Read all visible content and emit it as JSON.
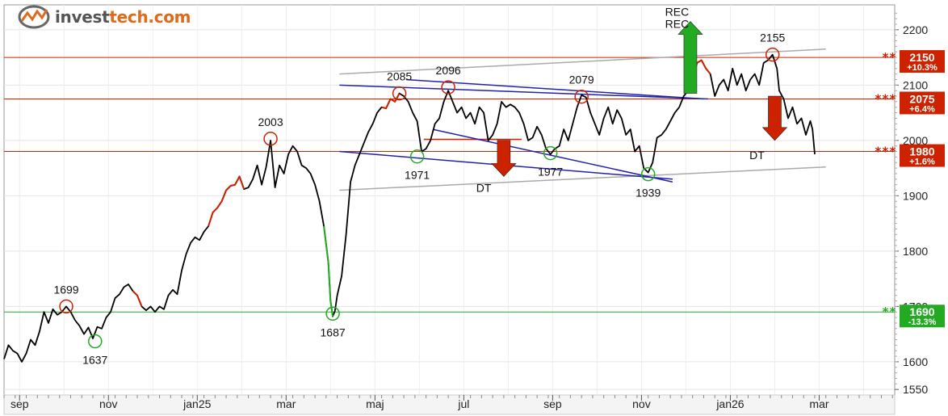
{
  "brand": {
    "name_part1": "invest",
    "name_part2": "tech.com",
    "icon": "investtech-logo-icon"
  },
  "chart_data": {
    "type": "line",
    "ylim": [
      1540,
      2245
    ],
    "yticks": [
      1550,
      1600,
      1700,
      1800,
      1900,
      2000,
      2100,
      2200
    ],
    "x_months": [
      {
        "label": "sep",
        "m": 1
      },
      {
        "label": "nov",
        "m": 3
      },
      {
        "label": "jan25",
        "m": 5
      },
      {
        "label": "mar",
        "m": 7
      },
      {
        "label": "maj",
        "m": 9
      },
      {
        "label": "jul",
        "m": 11
      },
      {
        "label": "sep",
        "m": 13
      },
      {
        "label": "nov",
        "m": 15
      },
      {
        "label": "jan26",
        "m": 17
      },
      {
        "label": "mar",
        "m": 19
      }
    ],
    "xlim": [
      0.65,
      20.7
    ],
    "series": [
      {
        "points": [
          [
            0.65,
            1605
          ],
          [
            0.75,
            1630
          ],
          [
            0.85,
            1620
          ],
          [
            0.95,
            1615
          ],
          [
            1.05,
            1600
          ],
          [
            1.15,
            1615
          ],
          [
            1.25,
            1640
          ],
          [
            1.35,
            1630
          ],
          [
            1.45,
            1655
          ],
          [
            1.55,
            1690
          ],
          [
            1.65,
            1670
          ],
          [
            1.75,
            1695
          ],
          [
            1.85,
            1685
          ],
          [
            1.95,
            1690
          ],
          [
            2.05,
            1700
          ],
          [
            2.15,
            1690
          ],
          [
            2.25,
            1675
          ],
          [
            2.35,
            1665
          ],
          [
            2.45,
            1650
          ],
          [
            2.55,
            1662
          ],
          [
            2.65,
            1642
          ],
          [
            2.75,
            1663
          ],
          [
            2.85,
            1660
          ],
          [
            2.95,
            1680
          ],
          [
            3.05,
            1690
          ],
          [
            3.15,
            1715
          ],
          [
            3.25,
            1722
          ],
          [
            3.35,
            1735
          ],
          [
            3.45,
            1740
          ],
          [
            3.55,
            1728
          ],
          [
            3.65,
            1720
          ],
          [
            3.75,
            1700
          ],
          [
            3.85,
            1693
          ],
          [
            3.95,
            1700
          ],
          [
            4.05,
            1690
          ],
          [
            4.15,
            1700
          ],
          [
            4.25,
            1695
          ],
          [
            4.35,
            1720
          ],
          [
            4.45,
            1730
          ],
          [
            4.55,
            1722
          ],
          [
            4.65,
            1765
          ],
          [
            4.75,
            1795
          ],
          [
            4.85,
            1815
          ],
          [
            4.95,
            1825
          ],
          [
            5.05,
            1820
          ],
          [
            5.15,
            1835
          ],
          [
            5.25,
            1845
          ],
          [
            5.35,
            1870
          ],
          [
            5.45,
            1878
          ],
          [
            5.55,
            1890
          ],
          [
            5.65,
            1910
          ],
          [
            5.75,
            1918
          ],
          [
            5.85,
            1920
          ],
          [
            5.95,
            1935
          ],
          [
            6.05,
            1912
          ],
          [
            6.15,
            1915
          ],
          [
            6.25,
            1930
          ],
          [
            6.35,
            1955
          ],
          [
            6.45,
            1920
          ],
          [
            6.55,
            1952
          ],
          [
            6.65,
            2000
          ],
          [
            6.75,
            1915
          ],
          [
            6.85,
            1955
          ],
          [
            6.95,
            1940
          ],
          [
            7.05,
            1975
          ],
          [
            7.15,
            1990
          ],
          [
            7.25,
            1980
          ],
          [
            7.35,
            1955
          ],
          [
            7.45,
            1950
          ],
          [
            7.55,
            1940
          ],
          [
            7.65,
            1920
          ],
          [
            7.75,
            1890
          ],
          [
            7.85,
            1845
          ],
          [
            7.95,
            1780
          ],
          [
            8.0,
            1710
          ],
          [
            8.05,
            1682
          ],
          [
            8.1,
            1692
          ],
          [
            8.15,
            1720
          ],
          [
            8.25,
            1755
          ],
          [
            8.35,
            1830
          ],
          [
            8.45,
            1925
          ],
          [
            8.55,
            1955
          ],
          [
            8.65,
            1975
          ],
          [
            8.75,
            1995
          ],
          [
            8.85,
            2015
          ],
          [
            8.95,
            2030
          ],
          [
            9.05,
            2050
          ],
          [
            9.15,
            2060
          ],
          [
            9.25,
            2058
          ],
          [
            9.35,
            2075
          ],
          [
            9.45,
            2070
          ],
          [
            9.55,
            2085
          ],
          [
            9.65,
            2080
          ],
          [
            9.75,
            2070
          ],
          [
            9.85,
            2050
          ],
          [
            9.95,
            2035
          ],
          [
            10.05,
            1980
          ],
          [
            10.15,
            1985
          ],
          [
            10.25,
            2000
          ],
          [
            10.35,
            2030
          ],
          [
            10.45,
            2040
          ],
          [
            10.55,
            2070
          ],
          [
            10.65,
            2090
          ],
          [
            10.75,
            2070
          ],
          [
            10.85,
            2050
          ],
          [
            10.95,
            2060
          ],
          [
            11.05,
            2040
          ],
          [
            11.15,
            2050
          ],
          [
            11.25,
            2030
          ],
          [
            11.35,
            2060
          ],
          [
            11.45,
            2050
          ],
          [
            11.55,
            2000
          ],
          [
            11.65,
            2010
          ],
          [
            11.75,
            2030
          ],
          [
            11.85,
            2070
          ],
          [
            11.95,
            2060
          ],
          [
            12.05,
            2065
          ],
          [
            12.15,
            2060
          ],
          [
            12.25,
            2050
          ],
          [
            12.35,
            2030
          ],
          [
            12.45,
            2000
          ],
          [
            12.55,
            2005
          ],
          [
            12.65,
            2025
          ],
          [
            12.75,
            2010
          ],
          [
            12.85,
            1985
          ],
          [
            12.95,
            1975
          ],
          [
            13.05,
            1985
          ],
          [
            13.15,
            1990
          ],
          [
            13.25,
            2020
          ],
          [
            13.35,
            2000
          ],
          [
            13.45,
            2030
          ],
          [
            13.55,
            2060
          ],
          [
            13.65,
            2082
          ],
          [
            13.75,
            2078
          ],
          [
            13.85,
            2050
          ],
          [
            13.95,
            2030
          ],
          [
            14.05,
            2010
          ],
          [
            14.15,
            2040
          ],
          [
            14.25,
            2060
          ],
          [
            14.35,
            2030
          ],
          [
            14.45,
            2055
          ],
          [
            14.55,
            2040
          ],
          [
            14.65,
            2010
          ],
          [
            14.75,
            2020
          ],
          [
            14.85,
            1980
          ],
          [
            14.95,
            1990
          ],
          [
            15.05,
            1950
          ],
          [
            15.15,
            1942
          ],
          [
            15.25,
            1960
          ],
          [
            15.35,
            2005
          ],
          [
            15.45,
            2010
          ],
          [
            15.55,
            2020
          ],
          [
            15.65,
            2035
          ],
          [
            15.75,
            2050
          ],
          [
            15.85,
            2060
          ],
          [
            15.95,
            2080
          ],
          [
            16.05,
            2090
          ],
          [
            16.15,
            2110
          ],
          [
            16.25,
            2140
          ],
          [
            16.35,
            2145
          ],
          [
            16.45,
            2130
          ],
          [
            16.55,
            2120
          ],
          [
            16.65,
            2080
          ],
          [
            16.75,
            2100
          ],
          [
            16.85,
            2110
          ],
          [
            16.95,
            2090
          ],
          [
            17.05,
            2130
          ],
          [
            17.15,
            2100
          ],
          [
            17.25,
            2120
          ],
          [
            17.35,
            2090
          ],
          [
            17.45,
            2110
          ],
          [
            17.55,
            2120
          ],
          [
            17.65,
            2100
          ],
          [
            17.75,
            2140
          ],
          [
            17.85,
            2145
          ],
          [
            17.95,
            2155
          ],
          [
            18.05,
            2130
          ],
          [
            18.1,
            2090
          ],
          [
            18.2,
            2075
          ],
          [
            18.3,
            2040
          ],
          [
            18.4,
            2060
          ],
          [
            18.5,
            2030
          ],
          [
            18.6,
            2040
          ],
          [
            18.7,
            2010
          ],
          [
            18.8,
            2035
          ],
          [
            18.85,
            2020
          ],
          [
            18.9,
            1975
          ]
        ]
      }
    ],
    "colored_segments": [
      {
        "from": 3.5,
        "to": 3.8,
        "color": "#cc2200"
      },
      {
        "from": 5.2,
        "to": 6.1,
        "color": "#cc2200"
      },
      {
        "from": 7.85,
        "to": 8.07,
        "color": "#22aa22"
      },
      {
        "from": 9.1,
        "to": 9.6,
        "color": "#cc2200"
      },
      {
        "from": 16.0,
        "to": 16.55,
        "color": "#cc2200"
      }
    ],
    "levels": [
      {
        "stars": "**",
        "value": "2150",
        "pct": "+10.3%",
        "y": 2150,
        "color": "#cc2200"
      },
      {
        "stars": "***",
        "value": "2075",
        "pct": "+6.4%",
        "y": 2075,
        "color": "#cc2200"
      },
      {
        "stars": "***",
        "value": "1980",
        "pct": "+1.6%",
        "y": 1980,
        "color": "#cc2200"
      },
      {
        "stars": "**",
        "value": "1690",
        "pct": "-13.3%",
        "y": 1690,
        "color": "#22aa22"
      }
    ],
    "trendlines": [
      {
        "color": "#aaaaaa",
        "p1": [
          8.2,
          2120
        ],
        "p2": [
          19.15,
          2165
        ]
      },
      {
        "color": "#aaaaaa",
        "p1": [
          8.2,
          1910
        ],
        "p2": [
          19.15,
          1952
        ]
      },
      {
        "color": "#2222aa",
        "p1": [
          8.2,
          2100
        ],
        "p2": [
          16.5,
          2075
        ]
      },
      {
        "color": "#2222aa",
        "p1": [
          8.2,
          1980
        ],
        "p2": [
          15.7,
          1930
        ]
      },
      {
        "color": "#2222aa",
        "p1": [
          9.7,
          2110
        ],
        "p2": [
          16.4,
          2075
        ]
      },
      {
        "color": "#2222aa",
        "p1": [
          10.3,
          2020
        ],
        "p2": [
          15.7,
          1925
        ]
      }
    ],
    "extra_lines": [
      {
        "color": "#cc2200",
        "p1": [
          10.1,
          2002
        ],
        "p2": [
          12.3,
          2002
        ]
      }
    ],
    "peaks": [
      {
        "label": "1699",
        "x": 2.05,
        "y": 1700,
        "kind": "high"
      },
      {
        "label": "2003",
        "x": 6.65,
        "y": 2003,
        "kind": "high"
      },
      {
        "label": "2085",
        "x": 9.55,
        "y": 2085,
        "kind": "high"
      },
      {
        "label": "2096",
        "x": 10.65,
        "y": 2096,
        "kind": "high"
      },
      {
        "label": "2079",
        "x": 13.65,
        "y": 2079,
        "kind": "high"
      },
      {
        "label": "2155",
        "x": 17.95,
        "y": 2155,
        "kind": "high"
      },
      {
        "label": "1637",
        "x": 2.7,
        "y": 1637,
        "kind": "low"
      },
      {
        "label": "1687",
        "x": 8.05,
        "y": 1687,
        "kind": "low"
      },
      {
        "label": "1971",
        "x": 9.95,
        "y": 1971,
        "kind": "low"
      },
      {
        "label": "1977",
        "x": 12.95,
        "y": 1977,
        "kind": "low"
      },
      {
        "label": "1939",
        "x": 15.15,
        "y": 1939,
        "kind": "low"
      }
    ],
    "signals": [
      {
        "label": "DT",
        "dir": "down",
        "x": 11.9,
        "y_top": 2000,
        "y_bot": 1935,
        "color": "#cc2200",
        "label_x": 11.45,
        "label_y": 1907
      },
      {
        "label": "DT",
        "dir": "down",
        "x": 18.0,
        "y_top": 2080,
        "y_bot": 2000,
        "color": "#cc2200",
        "label_x": 17.6,
        "label_y": 1966
      },
      {
        "label": "REC",
        "label2": "REC",
        "dir": "up",
        "x": 16.1,
        "y_top": 2215,
        "y_bot": 2085,
        "color": "#22aa22",
        "label_x": 15.8,
        "label_y": 2225
      }
    ]
  }
}
